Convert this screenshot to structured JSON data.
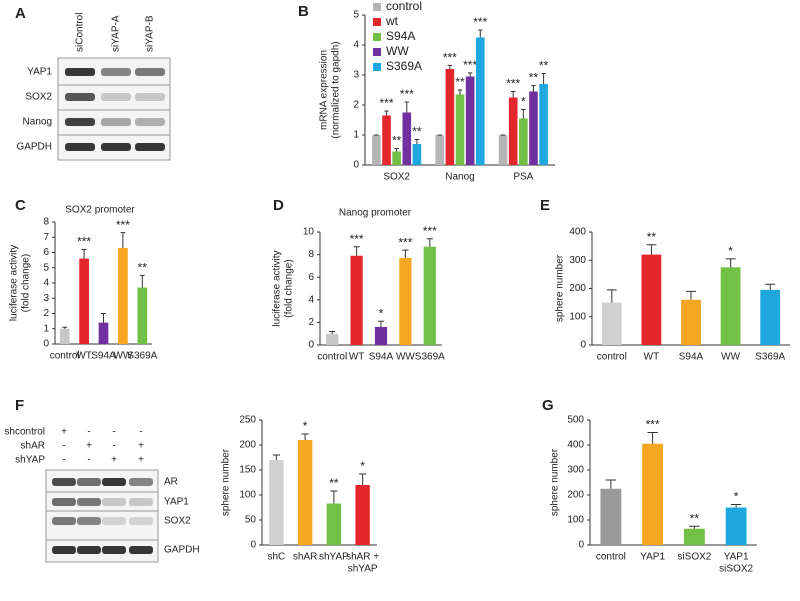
{
  "panel_labels": [
    "A",
    "B",
    "C",
    "D",
    "E",
    "F",
    "G"
  ],
  "blots": [
    {
      "lanes": [
        "siControl",
        "siYAP-A",
        "siYAP-B"
      ],
      "rows": [
        "YAP1",
        "SOX2",
        "Nanog",
        "GAPDH"
      ]
    },
    {
      "conditions": [
        {
          "label": "shcontrol",
          "signs": [
            "+",
            "-",
            "-",
            "-"
          ]
        },
        {
          "label": "shAR",
          "signs": [
            "-",
            "+",
            "-",
            "+"
          ]
        },
        {
          "label": "shYAP",
          "signs": [
            "-",
            "-",
            "+",
            "+"
          ]
        }
      ],
      "rows": [
        "AR",
        "YAP1",
        "SOX2",
        "GAPDH"
      ]
    }
  ],
  "chart_data": [
    {
      "type": "grouped_bar",
      "ylabel": [
        "mRNA expression",
        "(normalized to gapdh)"
      ],
      "categories": [
        "SOX2",
        "Nanog",
        "PSA"
      ],
      "ylim": [
        0,
        5
      ],
      "yticks": [
        0,
        1,
        2,
        3,
        4,
        5
      ],
      "legend": "top-left",
      "series": [
        {
          "name": "control",
          "color": "#b5b5b5",
          "values": [
            1,
            1,
            1
          ],
          "errors": [
            0,
            0,
            0
          ],
          "annotations": [
            null,
            null,
            null
          ]
        },
        {
          "name": "wt",
          "color": "#e3262b",
          "values": [
            1.65,
            3.2,
            2.25
          ],
          "errors": [
            0.15,
            0.12,
            0.2
          ],
          "annotations": [
            "***",
            "***",
            "***"
          ]
        },
        {
          "name": "S94A",
          "color": "#72c046",
          "values": [
            0.45,
            2.35,
            1.55
          ],
          "errors": [
            0.1,
            0.15,
            0.3
          ],
          "annotations": [
            "**",
            "**",
            "*"
          ]
        },
        {
          "name": "WW",
          "color": "#7030a0",
          "values": [
            1.75,
            2.95,
            2.45
          ],
          "errors": [
            0.35,
            0.12,
            0.2
          ],
          "annotations": [
            "***",
            "***",
            "**"
          ]
        },
        {
          "name": "S369A",
          "color": "#1fa8e0",
          "values": [
            0.7,
            4.25,
            2.7
          ],
          "errors": [
            0.15,
            0.25,
            0.35
          ],
          "annotations": [
            "**",
            "***",
            "**"
          ]
        }
      ]
    },
    {
      "type": "bar",
      "title": "SOX2 promoter",
      "ylabel": [
        "luciferase activity",
        "(fold change)"
      ],
      "categories": [
        "control",
        "WT",
        "S94A",
        "WW",
        "S369A"
      ],
      "values": [
        1,
        5.6,
        1.4,
        6.3,
        3.7
      ],
      "errors": [
        0.1,
        0.6,
        0.6,
        1.0,
        0.8
      ],
      "annotations": [
        null,
        "***",
        null,
        "***",
        "**"
      ],
      "colors": [
        "#c8c8c8",
        "#e3262b",
        "#7030a0",
        "#f5a623",
        "#72c046"
      ],
      "ylim": [
        0,
        8
      ],
      "yticks": [
        0,
        1,
        2,
        3,
        4,
        5,
        6,
        7,
        8
      ]
    },
    {
      "type": "bar",
      "title": "Nanog promoter",
      "ylabel": [
        "luciferase activity",
        "(fold change)"
      ],
      "categories": [
        "control",
        "WT",
        "S94A",
        "WW",
        "S369A"
      ],
      "values": [
        1,
        7.9,
        1.6,
        7.7,
        8.7
      ],
      "errors": [
        0.2,
        0.8,
        0.5,
        0.7,
        0.7
      ],
      "annotations": [
        null,
        "***",
        "*",
        "***",
        "***"
      ],
      "colors": [
        "#c8c8c8",
        "#e3262b",
        "#7030a0",
        "#f5a623",
        "#72c046"
      ],
      "ylim": [
        0,
        10
      ],
      "yticks": [
        0,
        2,
        4,
        6,
        8,
        10
      ]
    },
    {
      "type": "bar",
      "ylabel": [
        "sphere number"
      ],
      "categories": [
        "control",
        "WT",
        "S94A",
        "WW",
        "S369A"
      ],
      "values": [
        150,
        320,
        160,
        275,
        195
      ],
      "errors": [
        45,
        35,
        30,
        30,
        20
      ],
      "annotations": [
        null,
        "**",
        null,
        "*",
        null
      ],
      "colors": [
        "#d0d0d0",
        "#e3262b",
        "#f5a623",
        "#72c046",
        "#1fa8e0"
      ],
      "ylim": [
        0,
        400
      ],
      "yticks": [
        0,
        100,
        200,
        300,
        400
      ]
    },
    {
      "type": "bar",
      "ylabel": [
        "sphere number"
      ],
      "categories": [
        "shC",
        "shAR",
        "shYAP",
        [
          "shAR +",
          "shYAP"
        ]
      ],
      "values": [
        170,
        210,
        83,
        120
      ],
      "errors": [
        10,
        12,
        25,
        22
      ],
      "annotations": [
        null,
        "*",
        "**",
        "*"
      ],
      "colors": [
        "#d0d0d0",
        "#f5a623",
        "#72c046",
        "#e3262b"
      ],
      "ylim": [
        0,
        250
      ],
      "yticks": [
        0,
        50,
        100,
        150,
        200,
        250
      ]
    },
    {
      "type": "bar",
      "ylabel": [
        "sphere number"
      ],
      "categories": [
        "control",
        "YAP1",
        "siSOX2",
        [
          "YAP1",
          "siSOX2"
        ]
      ],
      "values": [
        225,
        405,
        65,
        150
      ],
      "errors": [
        35,
        45,
        10,
        12
      ],
      "annotations": [
        null,
        "***",
        "**",
        "*"
      ],
      "colors": [
        "#9a9a9a",
        "#f5a623",
        "#72c046",
        "#1fa8e0"
      ],
      "ylim": [
        0,
        500
      ],
      "yticks": [
        0,
        100,
        200,
        300,
        400,
        500
      ]
    }
  ]
}
